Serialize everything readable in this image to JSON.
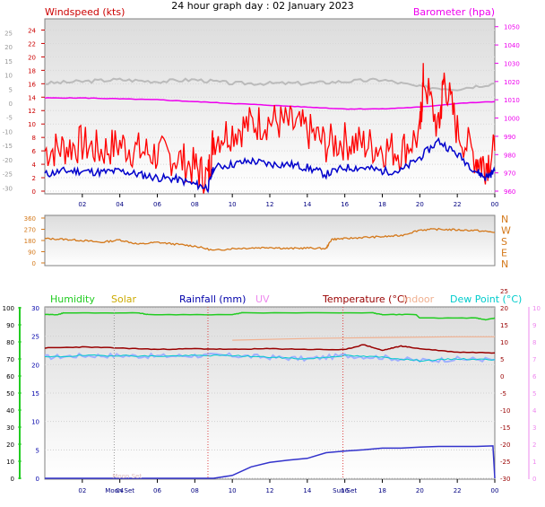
{
  "title": "24 hour graph day : 02 January 2023",
  "colors": {
    "windspeed": "#cc0000",
    "gust": "#ff0000",
    "avg_wind": "#0000cc",
    "barometer": "#ee00ee",
    "baro_shadow": "#bbbbbb",
    "direction": "#d4781a",
    "humidity": "#22cc22",
    "solar": "#ccaa00",
    "rainfall": "#0000aa",
    "uv": "#ee88ee",
    "temperature": "#990000",
    "indoor": "#f0b090",
    "dewpoint": "#00cccc",
    "plot_bg": "#f0f0f0"
  },
  "chart_data": [
    {
      "name": "wind",
      "type": "line",
      "title": "24 hour graph day : 02 January 2023",
      "left_axis_label": "Windspeed (kts)",
      "right_axis_label": "Barometer (hpa)",
      "x_ticks": [
        "02",
        "04",
        "06",
        "08",
        "10",
        "12",
        "14",
        "16",
        "18",
        "20",
        "22",
        "00"
      ],
      "left_ticks_red": [
        "0",
        "2",
        "4",
        "6",
        "8",
        "10",
        "12",
        "14",
        "16",
        "18",
        "20",
        "22",
        "24"
      ],
      "left_ticks_grey": [
        "-30",
        "-25",
        "-20",
        "-15",
        "-10",
        "-5",
        "0",
        "5",
        "10",
        "15",
        "20",
        "25"
      ],
      "right_ticks": [
        "960",
        "970",
        "980",
        "990",
        "1000",
        "1010",
        "1020",
        "1030",
        "1040",
        "1050"
      ],
      "ylim": [
        0,
        25
      ],
      "xlim": [
        0,
        24
      ],
      "series": [
        {
          "name": "Windspeed",
          "x": [
            0,
            1,
            2,
            3,
            4,
            5,
            6,
            7,
            8,
            8.7,
            9,
            10,
            11,
            12,
            13,
            14,
            15,
            16,
            17,
            18,
            19,
            20,
            20.2,
            21,
            21.3,
            22,
            23,
            23.5,
            24
          ],
          "values": [
            6,
            6.5,
            7,
            6,
            7,
            6,
            5.5,
            5,
            3.5,
            2,
            8,
            9,
            10,
            10.5,
            10,
            9,
            7,
            7.5,
            7,
            6.5,
            6,
            8.5,
            17,
            9,
            17,
            9,
            5,
            4,
            6
          ]
        },
        {
          "name": "Average",
          "x": [
            0,
            1,
            2,
            3,
            4,
            5,
            6,
            7,
            8,
            8.7,
            9,
            10,
            11,
            12,
            13,
            14,
            15,
            16,
            17,
            18,
            19,
            20,
            21,
            22,
            23,
            23.5,
            24
          ],
          "values": [
            2.5,
            3,
            3,
            2.8,
            3,
            2.5,
            2,
            1.8,
            1,
            0.5,
            3.5,
            4,
            4.5,
            4,
            4,
            3.5,
            2.5,
            3.5,
            3.5,
            3,
            3,
            5,
            7.5,
            5.5,
            3,
            2,
            3
          ]
        },
        {
          "name": "Barometer",
          "x": [
            0,
            2,
            4,
            6,
            8,
            10,
            12,
            14,
            16,
            18,
            20,
            22,
            24
          ],
          "values": [
            1011,
            1011,
            1010.5,
            1010,
            1009,
            1008,
            1007,
            1006,
            1005,
            1005,
            1006,
            1008,
            1009
          ]
        },
        {
          "name": "Barometer trace",
          "x": [
            0,
            2,
            4,
            6,
            8,
            10,
            12,
            14,
            16,
            18,
            20,
            22,
            24
          ],
          "values": [
            1019,
            1020,
            1021,
            1020,
            1021,
            1019,
            1019,
            1019,
            1020,
            1021,
            1017,
            1016,
            1019
          ]
        }
      ]
    },
    {
      "name": "direction",
      "type": "line",
      "right_axis_labels": [
        "N",
        "W",
        "S",
        "E",
        "N"
      ],
      "y_ticks": [
        "360",
        "270",
        "180",
        "90",
        "0"
      ],
      "ylim": [
        0,
        360
      ],
      "xlim": [
        0,
        24
      ],
      "series": [
        {
          "name": "Wind Direction",
          "x": [
            0,
            1,
            2,
            3,
            4,
            5,
            6,
            7,
            8,
            9,
            10,
            11,
            12,
            13,
            14,
            15,
            15.3,
            16,
            17,
            18,
            19,
            20,
            21,
            22,
            23,
            24
          ],
          "values": [
            195,
            190,
            180,
            165,
            185,
            150,
            165,
            150,
            135,
            100,
            115,
            120,
            125,
            115,
            120,
            115,
            190,
            195,
            205,
            210,
            220,
            265,
            270,
            265,
            260,
            245
          ]
        }
      ]
    },
    {
      "name": "climate",
      "type": "line",
      "legend": [
        "Humidity",
        "Solar",
        "Rainfall (mm)",
        "UV",
        "Temperature (°C)",
        "Indoor",
        "Dew Point (°C)"
      ],
      "x_ticks": [
        "02",
        "Moon Set",
        "06",
        "08",
        "10",
        "12",
        "14",
        "Sun Set",
        "18",
        "20",
        "22",
        "00"
      ],
      "x_ticks_overlap": [
        "04",
        "16"
      ],
      "annotation": "Moon Set",
      "left_ticks_humidity": [
        "0",
        "10",
        "20",
        "30",
        "40",
        "50",
        "60",
        "70",
        "80",
        "90",
        "100"
      ],
      "left_ticks_rain": [
        "0",
        "5",
        "10",
        "15",
        "20",
        "25",
        "30"
      ],
      "right_ticks_temp": [
        "-30",
        "-25",
        "-20",
        "-15",
        "-10",
        "-5",
        "0",
        "5",
        "10",
        "15",
        "20",
        "25"
      ],
      "right_ticks_uv": [
        "0",
        "1",
        "2",
        "3",
        "4",
        "5",
        "6",
        "7",
        "8",
        "9",
        "10"
      ],
      "xlim": [
        0,
        24
      ],
      "series": [
        {
          "name": "Humidity",
          "x": [
            0,
            0.7,
            1,
            5,
            5.5,
            10,
            10.5,
            17.5,
            18,
            19.8,
            20,
            23,
            23.5,
            24
          ],
          "values": [
            96,
            96,
            97,
            97,
            96,
            96,
            97,
            97,
            96,
            96,
            94,
            94,
            93,
            94
          ]
        },
        {
          "name": "Temperature",
          "x": [
            0,
            2,
            4,
            6,
            8,
            10,
            12,
            14,
            16,
            17,
            18,
            19,
            20,
            22,
            24
          ],
          "values": [
            8.2,
            8.5,
            8.2,
            7.8,
            8,
            7.8,
            8,
            7.8,
            7.7,
            9.2,
            7.5,
            8.8,
            8,
            7,
            6.8
          ]
        },
        {
          "name": "Dew Point",
          "x": [
            0,
            2,
            4,
            6,
            8,
            10,
            12,
            14,
            16,
            18,
            20,
            22,
            24
          ],
          "values": [
            5.5,
            6,
            6,
            5.8,
            6,
            6,
            5.5,
            5,
            6,
            5.5,
            4.5,
            5,
            4.8
          ]
        },
        {
          "name": "Indoor",
          "x": [
            10,
            14,
            18,
            22,
            24
          ],
          "values": [
            10.5,
            11,
            11.3,
            11.5,
            11.5
          ]
        },
        {
          "name": "Rainfall",
          "x": [
            0,
            1,
            2,
            3,
            4,
            5,
            6,
            7,
            8,
            9,
            10,
            11,
            12,
            13,
            14,
            15,
            16,
            17,
            18,
            19,
            20,
            21,
            22,
            23,
            23.9,
            24
          ],
          "values": [
            0,
            0,
            0,
            0,
            0,
            0,
            0,
            0,
            0,
            0,
            0.5,
            2,
            2.8,
            3.2,
            3.5,
            4.5,
            4.8,
            5,
            5.3,
            5.3,
            5.5,
            5.6,
            5.6,
            5.6,
            5.7,
            0
          ]
        }
      ]
    }
  ]
}
